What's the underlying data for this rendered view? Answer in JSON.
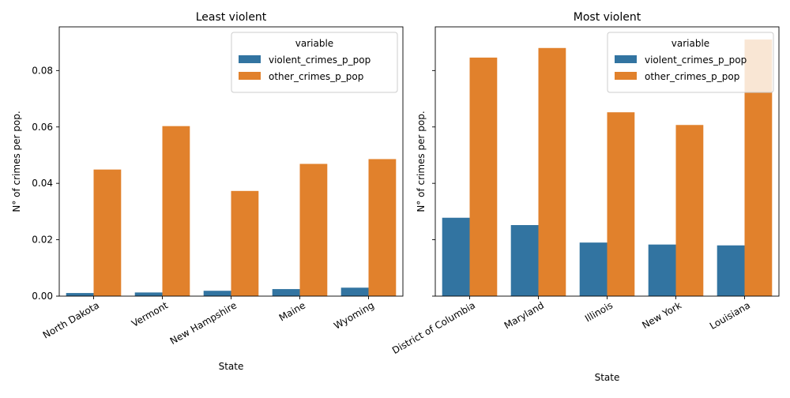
{
  "colors": {
    "violent": "#3274a1",
    "other": "#e1812c",
    "axis": "#000000",
    "legend_border": "#cccccc"
  },
  "chart_data": [
    {
      "type": "bar",
      "title": "Least violent",
      "xlabel": "State",
      "ylabel": "N° of crimes per pop.",
      "categories": [
        "North Dakota",
        "Vermont",
        "New Hampshire",
        "Maine",
        "Wyoming"
      ],
      "series": [
        {
          "name": "violent_crimes_p_pop",
          "values": [
            0.0011,
            0.0013,
            0.0019,
            0.0025,
            0.003
          ]
        },
        {
          "name": "other_crimes_p_pop",
          "values": [
            0.0449,
            0.0603,
            0.0373,
            0.0469,
            0.0486
          ]
        }
      ],
      "ylim": [
        0,
        0.0955
      ],
      "yticks": [
        "0.00",
        "0.02",
        "0.04",
        "0.06",
        "0.08"
      ],
      "legend": {
        "title": "variable",
        "position": "upper right"
      },
      "grid": false
    },
    {
      "type": "bar",
      "title": "Most violent",
      "xlabel": "State",
      "ylabel": "N° of crimes per pop.",
      "categories": [
        "District of Columbia",
        "Maryland",
        "Illinois",
        "New York",
        "Louisiana"
      ],
      "series": [
        {
          "name": "violent_crimes_p_pop",
          "values": [
            0.0278,
            0.0252,
            0.019,
            0.0183,
            0.018
          ]
        },
        {
          "name": "other_crimes_p_pop",
          "values": [
            0.0846,
            0.088,
            0.0652,
            0.0607,
            0.091
          ]
        }
      ],
      "ylim": [
        0,
        0.0955
      ],
      "yticks": [
        "",
        "",
        "",
        "",
        ""
      ],
      "legend": {
        "title": "variable",
        "position": "upper right"
      },
      "grid": false
    }
  ]
}
